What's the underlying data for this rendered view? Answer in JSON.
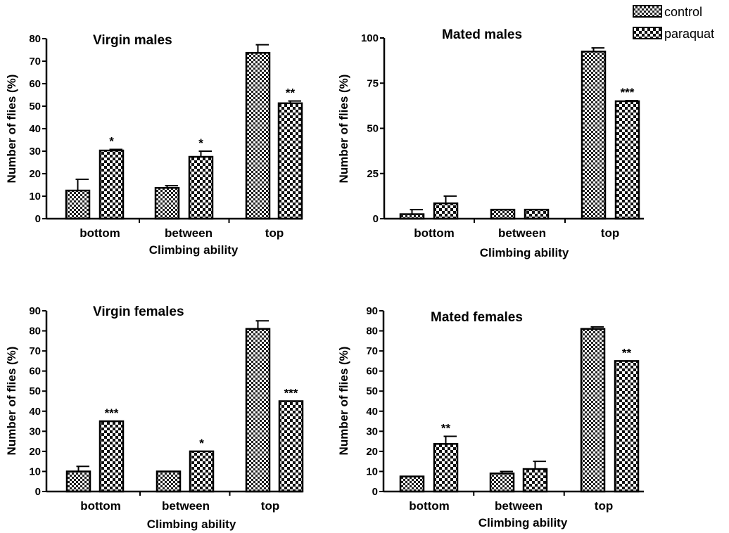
{
  "legend": [
    {
      "name": "control",
      "pattern": "small-check"
    },
    {
      "name": "paraquat",
      "pattern": "large-check"
    }
  ],
  "chart_data": [
    {
      "type": "bar",
      "title": "Virgin males",
      "xlabel": "Climbing ability",
      "ylabel": "Number of flies (%)",
      "ylim": [
        0,
        80
      ],
      "yticks": [
        0,
        10,
        20,
        30,
        40,
        50,
        60,
        70,
        80
      ],
      "categories": [
        "bottom",
        "between",
        "top"
      ],
      "series": [
        {
          "name": "control",
          "values": [
            12.5,
            13.7,
            73.7
          ],
          "errors": [
            5.0,
            1.0,
            3.6
          ]
        },
        {
          "name": "paraquat",
          "values": [
            30.3,
            27.5,
            51.3
          ],
          "errors": [
            0.5,
            2.5,
            1.0
          ]
        }
      ],
      "annotations": [
        "*",
        "*",
        "**"
      ]
    },
    {
      "type": "bar",
      "title": "Mated males",
      "xlabel": "Climbing ability",
      "ylabel": "Number of flies (%)",
      "ylim": [
        0,
        100
      ],
      "yticks": [
        0,
        25,
        50,
        75,
        100
      ],
      "categories": [
        "bottom",
        "between",
        "top"
      ],
      "series": [
        {
          "name": "control",
          "values": [
            2.5,
            5.0,
            92.5
          ],
          "errors": [
            2.5,
            0,
            2.0
          ]
        },
        {
          "name": "paraquat",
          "values": [
            8.5,
            5.0,
            65.0
          ],
          "errors": [
            4.0,
            0,
            0.3
          ]
        }
      ],
      "annotations": [
        "",
        "",
        "***"
      ]
    },
    {
      "type": "bar",
      "title": "Virgin females",
      "xlabel": "Climbing ability",
      "ylabel": "Number of flies (%)",
      "ylim": [
        0,
        90
      ],
      "yticks": [
        0,
        10,
        20,
        30,
        40,
        50,
        60,
        70,
        80,
        90
      ],
      "categories": [
        "bottom",
        "between",
        "top"
      ],
      "series": [
        {
          "name": "control",
          "values": [
            10.0,
            10.0,
            81.0
          ],
          "errors": [
            2.5,
            0,
            4.0
          ]
        },
        {
          "name": "paraquat",
          "values": [
            35.0,
            20.0,
            45.0
          ],
          "errors": [
            0,
            0,
            0
          ]
        }
      ],
      "annotations": [
        "***",
        "*",
        "***"
      ]
    },
    {
      "type": "bar",
      "title": "Mated females",
      "xlabel": "Climbing ability",
      "ylabel": "Number of flies (%)",
      "ylim": [
        0,
        90
      ],
      "yticks": [
        0,
        10,
        20,
        30,
        40,
        50,
        60,
        70,
        80,
        90
      ],
      "categories": [
        "bottom",
        "between",
        "top"
      ],
      "series": [
        {
          "name": "control",
          "values": [
            7.5,
            9.0,
            81.0
          ],
          "errors": [
            0,
            1.0,
            1.0
          ]
        },
        {
          "name": "paraquat",
          "values": [
            23.7,
            11.2,
            65.0
          ],
          "errors": [
            3.8,
            3.8,
            0
          ]
        }
      ],
      "annotations": [
        "**",
        "",
        "**"
      ]
    }
  ]
}
